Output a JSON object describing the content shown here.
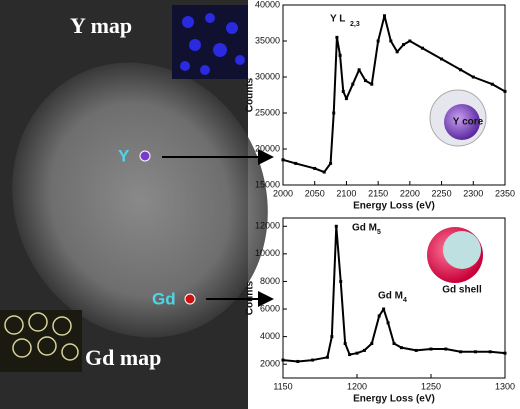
{
  "image": {
    "y_map": "Y map",
    "gd_map": "Gd map",
    "y_point": "Y",
    "gd_point": "Gd"
  },
  "chart_data": [
    {
      "type": "line",
      "color": "#000000",
      "x": [
        2000,
        2020,
        2050,
        2065,
        2075,
        2080,
        2085,
        2090,
        2095,
        2100,
        2110,
        2120,
        2130,
        2140,
        2150,
        2160,
        2170,
        2180,
        2190,
        2200,
        2220,
        2250,
        2280,
        2300,
        2330,
        2350
      ],
      "values": [
        18500,
        18000,
        17300,
        16800,
        18000,
        25000,
        35500,
        33000,
        28000,
        27000,
        29000,
        31000,
        29500,
        29000,
        35000,
        38500,
        35000,
        33500,
        34500,
        35000,
        34000,
        32500,
        31000,
        30000,
        29000,
        28000
      ],
      "xlim": [
        2000,
        2350
      ],
      "xticks": [
        2000,
        2050,
        2100,
        2150,
        2200,
        2250,
        2300,
        2350
      ],
      "ylim": [
        15000,
        40000
      ],
      "yticks": [
        15000,
        20000,
        25000,
        30000,
        35000,
        40000
      ],
      "x_label": "Energy Loss (eV)",
      "y_label": "Counts",
      "annotations": [
        {
          "text": "Y L",
          "sub": "2,3"
        }
      ],
      "inset_label": "Y core"
    },
    {
      "type": "line",
      "color": "#000000",
      "x": [
        1150,
        1160,
        1170,
        1180,
        1183,
        1186,
        1189,
        1192,
        1195,
        1200,
        1205,
        1210,
        1215,
        1218,
        1221,
        1225,
        1230,
        1240,
        1250,
        1260,
        1270,
        1280,
        1290,
        1300
      ],
      "values": [
        2300,
        2200,
        2300,
        2500,
        4000,
        12000,
        8000,
        3500,
        2700,
        2800,
        3000,
        3500,
        5500,
        6000,
        5000,
        3500,
        3200,
        3000,
        3100,
        3100,
        2900,
        2900,
        2900,
        2800
      ],
      "xlim": [
        1150,
        1300
      ],
      "xticks": [
        1150,
        1200,
        1250,
        1300
      ],
      "ylim": [
        1000,
        12600
      ],
      "yticks": [
        2000,
        4000,
        6000,
        8000,
        10000,
        12000
      ],
      "x_label": "Energy Loss (eV)",
      "y_label": "Counts",
      "annotations": [
        {
          "text": "Gd M",
          "sub": "5"
        },
        {
          "text": "Gd M",
          "sub": "4"
        }
      ],
      "inset_label": "Gd shell"
    }
  ]
}
